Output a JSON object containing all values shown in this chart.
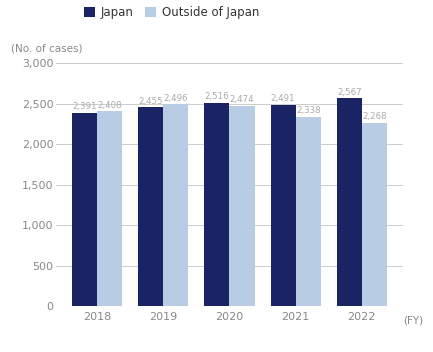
{
  "years": [
    "2018",
    "2019",
    "2020",
    "2021",
    "2022"
  ],
  "japan": [
    2391,
    2455,
    2516,
    2491,
    2567
  ],
  "outside": [
    2408,
    2496,
    2474,
    2338,
    2268
  ],
  "japan_color": "#1a2464",
  "outside_color": "#b8cce4",
  "bar_width": 0.38,
  "ylim": [
    0,
    3000
  ],
  "yticks": [
    0,
    500,
    1000,
    1500,
    2000,
    2500,
    3000
  ],
  "ylabel": "(No. of cases)",
  "xlabel": "(FY)",
  "legend_japan": "Japan",
  "legend_outside": "Outside of Japan",
  "label_color": "#aaaaaa",
  "grid_color": "#cccccc"
}
